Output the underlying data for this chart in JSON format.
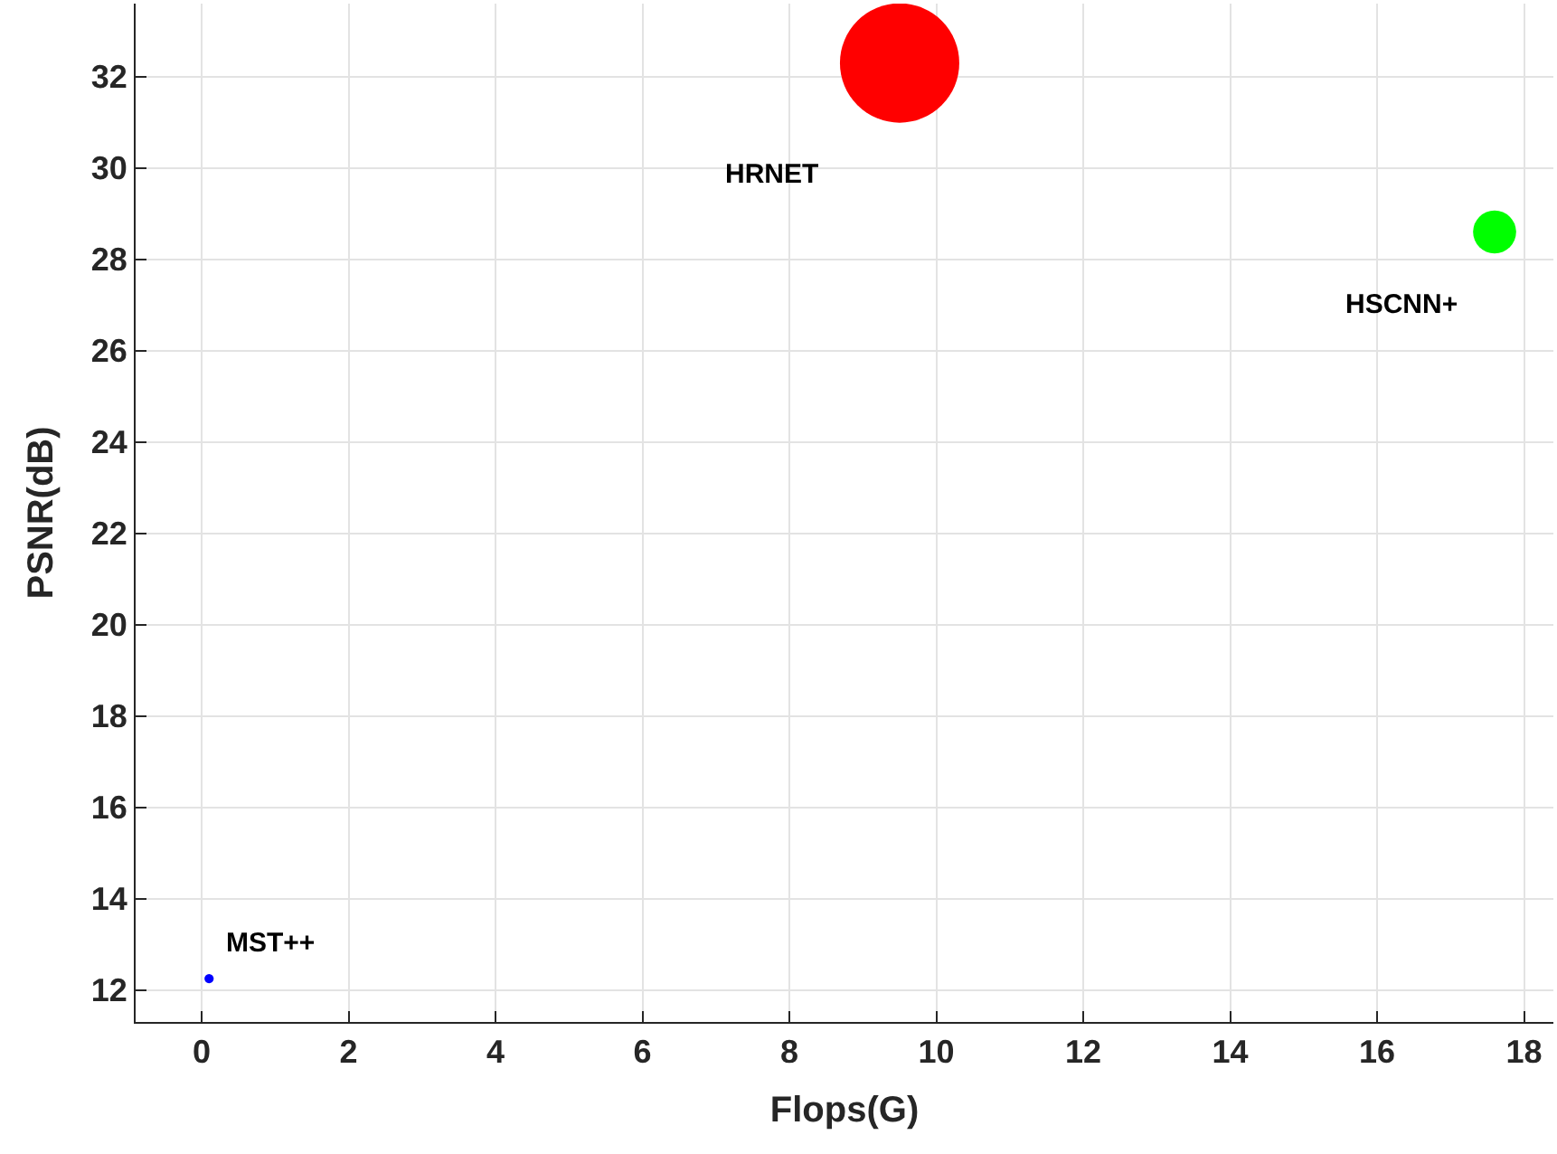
{
  "chart_data": {
    "type": "bubble",
    "xlabel": "Flops(G)",
    "ylabel": "PSNR(dB)",
    "series": [
      {
        "name": "MST++",
        "color": "#0000ff",
        "x": [
          0.1
        ],
        "values": [
          12.25
        ],
        "sizes": [
          0.006
        ]
      },
      {
        "name": "HRNET",
        "color": "#ff0000",
        "x": [
          9.5
        ],
        "values": [
          32.3
        ],
        "sizes": [
          1
        ]
      },
      {
        "name": "HSCNN+",
        "color": "#00ff00",
        "x": [
          17.6
        ],
        "values": [
          28.6
        ],
        "sizes": [
          0.13
        ]
      }
    ],
    "xlim": [
      -0.9,
      18.4
    ],
    "ylim": [
      11.3,
      33.6
    ],
    "xticks": [
      0,
      2,
      4,
      6,
      8,
      10,
      12,
      14,
      16,
      18
    ],
    "yticks": [
      12,
      14,
      16,
      18,
      20,
      22,
      24,
      26,
      28,
      30,
      32
    ],
    "grid": true,
    "legend": false
  }
}
